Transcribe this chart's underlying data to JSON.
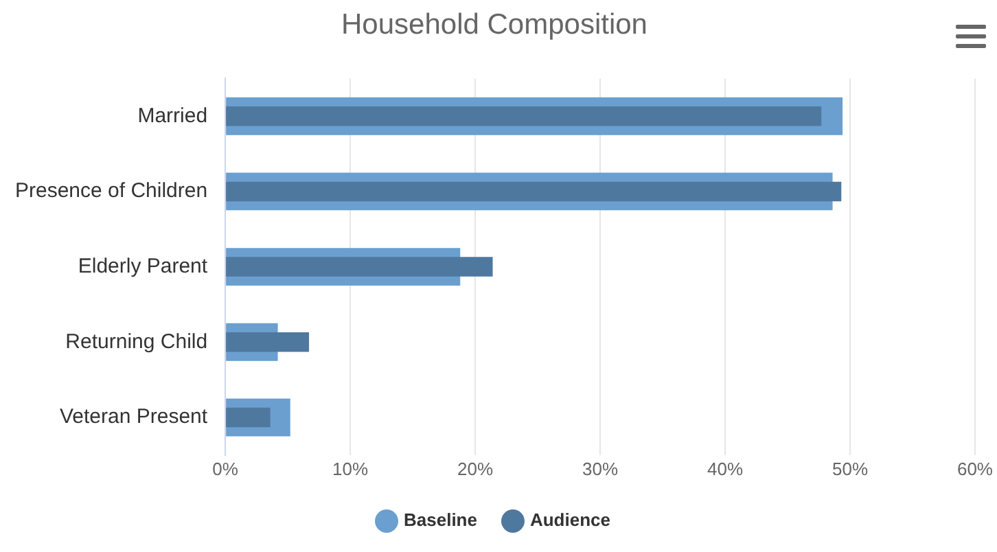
{
  "chart_data": {
    "type": "bar",
    "orientation": "horizontal",
    "title": "Household Composition",
    "categories": [
      "Married",
      "Presence of Children",
      "Elderly Parent",
      "Returning Child",
      "Veteran Present"
    ],
    "series": [
      {
        "name": "Baseline",
        "color": "#6a9fcf",
        "values": [
          49.4,
          48.6,
          18.8,
          4.2,
          5.2
        ]
      },
      {
        "name": "Audience",
        "color": "#4f789f",
        "values": [
          47.7,
          49.3,
          21.4,
          6.7,
          3.6
        ]
      }
    ],
    "xlim": [
      0,
      60
    ],
    "xticks": [
      {
        "value": 0,
        "label": "0%"
      },
      {
        "value": 10,
        "label": "10%"
      },
      {
        "value": 20,
        "label": "20%"
      },
      {
        "value": 30,
        "label": "30%"
      },
      {
        "value": 40,
        "label": "40%"
      },
      {
        "value": 50,
        "label": "50%"
      },
      {
        "value": 60,
        "label": "60%"
      }
    ],
    "grid": "x",
    "legend": "bottom"
  }
}
